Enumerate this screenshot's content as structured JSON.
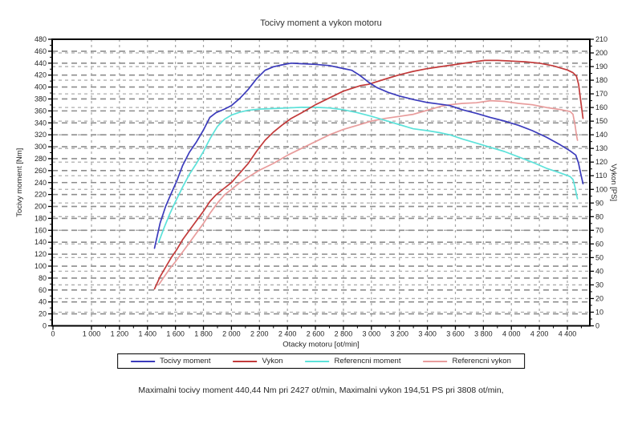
{
  "title": "Tocivy moment a vykon motoru",
  "footer_note": "Maximalni tocivy moment 440,44 Nm pri 2427 ot/min,  Maximalni vykon 194,51 PS pri 3808 ot/min,",
  "colors": {
    "background": "#ffffff",
    "axis": "#000000",
    "grid_left": "#8e8e8e",
    "grid_right": "#adadad",
    "grid_vertical": "#a5a5a5",
    "text": "#262626"
  },
  "chart_data": {
    "type": "line",
    "title": "Tocivy moment a vykon motoru",
    "xlabel": "Otacky motoru [ot/min]",
    "ylabel_left": "Tocivy moment [Nm]",
    "ylabel_right": "Vykon [PS]",
    "grid": true,
    "legend_position": "bottom",
    "ylim_left": [
      0,
      480
    ],
    "ytick_left": 20,
    "ylim_right": [
      0,
      210
    ],
    "ytick_right": 10,
    "x_axis_note": "axis starts at 0 with compressed gap, then linear 1000-4560",
    "x_ticks": [
      {
        "v": 0,
        "label": "0"
      },
      {
        "v": 1000,
        "label": "1 000"
      },
      {
        "v": 1200,
        "label": "1 200"
      },
      {
        "v": 1400,
        "label": "1 400"
      },
      {
        "v": 1600,
        "label": "1 600"
      },
      {
        "v": 1800,
        "label": "1 800"
      },
      {
        "v": 2000,
        "label": "2 000"
      },
      {
        "v": 2200,
        "label": "2 200"
      },
      {
        "v": 2400,
        "label": "2 400"
      },
      {
        "v": 2600,
        "label": "2 600"
      },
      {
        "v": 2800,
        "label": "2 800"
      },
      {
        "v": 3000,
        "label": "3 000"
      },
      {
        "v": 3200,
        "label": "3 200"
      },
      {
        "v": 3400,
        "label": "3 400"
      },
      {
        "v": 3600,
        "label": "3 600"
      },
      {
        "v": 3800,
        "label": "3 800"
      },
      {
        "v": 4000,
        "label": "4 000"
      },
      {
        "v": 4200,
        "label": "4 200"
      },
      {
        "v": 4400,
        "label": "4 400"
      }
    ],
    "annotations": {
      "max_torque": "440,44 Nm pri 2427 ot/min",
      "max_power": "194,51 PS pri 3808 ot/min"
    },
    "series": [
      {
        "name": "Tocivy moment",
        "axis": "left",
        "unit": "Nm",
        "color": "#3b3bbc",
        "points": [
          [
            1450,
            130
          ],
          [
            1490,
            172
          ],
          [
            1530,
            200
          ],
          [
            1570,
            222
          ],
          [
            1610,
            243
          ],
          [
            1650,
            268
          ],
          [
            1700,
            291
          ],
          [
            1750,
            308
          ],
          [
            1800,
            328
          ],
          [
            1845,
            349
          ],
          [
            1890,
            357
          ],
          [
            1950,
            363
          ],
          [
            2000,
            369
          ],
          [
            2060,
            381
          ],
          [
            2120,
            396
          ],
          [
            2180,
            414
          ],
          [
            2240,
            428
          ],
          [
            2300,
            434
          ],
          [
            2360,
            437
          ],
          [
            2427,
            440
          ],
          [
            2500,
            439
          ],
          [
            2600,
            438
          ],
          [
            2700,
            436
          ],
          [
            2800,
            431
          ],
          [
            2860,
            428
          ],
          [
            2920,
            419
          ],
          [
            2980,
            408
          ],
          [
            3040,
            399
          ],
          [
            3120,
            391
          ],
          [
            3200,
            385
          ],
          [
            3300,
            379
          ],
          [
            3400,
            374
          ],
          [
            3500,
            371
          ],
          [
            3560,
            369
          ],
          [
            3650,
            362
          ],
          [
            3750,
            356
          ],
          [
            3850,
            349
          ],
          [
            3950,
            343
          ],
          [
            4050,
            336
          ],
          [
            4150,
            327
          ],
          [
            4250,
            316
          ],
          [
            4350,
            303
          ],
          [
            4420,
            293
          ],
          [
            4460,
            286
          ],
          [
            4480,
            272
          ],
          [
            4495,
            255
          ],
          [
            4512,
            238
          ]
        ]
      },
      {
        "name": "Vykon",
        "axis": "right",
        "unit": "PS",
        "color": "#c23a3a",
        "points": [
          [
            1450,
            27
          ],
          [
            1490,
            36
          ],
          [
            1530,
            43
          ],
          [
            1570,
            50
          ],
          [
            1610,
            56
          ],
          [
            1650,
            63
          ],
          [
            1700,
            70
          ],
          [
            1750,
            77
          ],
          [
            1800,
            84
          ],
          [
            1845,
            91
          ],
          [
            1890,
            96
          ],
          [
            1950,
            101
          ],
          [
            2000,
            105
          ],
          [
            2060,
            112
          ],
          [
            2120,
            119
          ],
          [
            2180,
            128
          ],
          [
            2240,
            136
          ],
          [
            2300,
            142
          ],
          [
            2360,
            147
          ],
          [
            2427,
            152
          ],
          [
            2500,
            156
          ],
          [
            2600,
            162
          ],
          [
            2700,
            167
          ],
          [
            2800,
            172
          ],
          [
            2860,
            174
          ],
          [
            2920,
            176
          ],
          [
            2980,
            177
          ],
          [
            3040,
            179
          ],
          [
            3120,
            181.5
          ],
          [
            3200,
            184
          ],
          [
            3300,
            186.5
          ],
          [
            3400,
            188.5
          ],
          [
            3500,
            190
          ],
          [
            3600,
            191.5
          ],
          [
            3700,
            193
          ],
          [
            3808,
            194.5
          ],
          [
            3900,
            194.5
          ],
          [
            4000,
            194
          ],
          [
            4100,
            193.5
          ],
          [
            4200,
            192.5
          ],
          [
            4300,
            190.5
          ],
          [
            4400,
            187.5
          ],
          [
            4440,
            185.5
          ],
          [
            4465,
            183
          ],
          [
            4480,
            177
          ],
          [
            4495,
            165
          ],
          [
            4512,
            152
          ]
        ]
      },
      {
        "name": "Referencni moment",
        "axis": "left",
        "unit": "Nm",
        "color": "#5ce2da",
        "points": [
          [
            1480,
            140
          ],
          [
            1520,
            165
          ],
          [
            1560,
            188
          ],
          [
            1600,
            208
          ],
          [
            1650,
            232
          ],
          [
            1700,
            254
          ],
          [
            1750,
            272
          ],
          [
            1800,
            292
          ],
          [
            1850,
            315
          ],
          [
            1900,
            334
          ],
          [
            1950,
            346
          ],
          [
            2000,
            353
          ],
          [
            2060,
            358
          ],
          [
            2120,
            361
          ],
          [
            2200,
            363
          ],
          [
            2300,
            364
          ],
          [
            2400,
            365
          ],
          [
            2500,
            366
          ],
          [
            2600,
            366
          ],
          [
            2700,
            365
          ],
          [
            2800,
            362
          ],
          [
            2900,
            357
          ],
          [
            3000,
            351
          ],
          [
            3100,
            344
          ],
          [
            3200,
            337
          ],
          [
            3300,
            330
          ],
          [
            3400,
            327
          ],
          [
            3500,
            323
          ],
          [
            3560,
            320
          ],
          [
            3650,
            313
          ],
          [
            3750,
            306
          ],
          [
            3850,
            299
          ],
          [
            3950,
            292
          ],
          [
            4050,
            283
          ],
          [
            4150,
            274
          ],
          [
            4250,
            264
          ],
          [
            4350,
            256
          ],
          [
            4420,
            250
          ],
          [
            4440,
            245
          ],
          [
            4455,
            232
          ],
          [
            4465,
            220
          ],
          [
            4472,
            213
          ]
        ]
      },
      {
        "name": "Referencni vykon",
        "axis": "right",
        "unit": "PS",
        "color": "#e89c9c",
        "points": [
          [
            1480,
            30
          ],
          [
            1520,
            36
          ],
          [
            1560,
            42
          ],
          [
            1600,
            47
          ],
          [
            1650,
            54
          ],
          [
            1700,
            61
          ],
          [
            1750,
            68
          ],
          [
            1800,
            75
          ],
          [
            1850,
            83
          ],
          [
            1900,
            90
          ],
          [
            1950,
            96
          ],
          [
            2000,
            100
          ],
          [
            2060,
            105
          ],
          [
            2120,
            109
          ],
          [
            2200,
            114
          ],
          [
            2300,
            119
          ],
          [
            2400,
            125
          ],
          [
            2500,
            130
          ],
          [
            2600,
            135
          ],
          [
            2700,
            140
          ],
          [
            2800,
            144
          ],
          [
            2900,
            147
          ],
          [
            3000,
            150
          ],
          [
            3100,
            152
          ],
          [
            3200,
            153.5
          ],
          [
            3300,
            155
          ],
          [
            3400,
            158
          ],
          [
            3500,
            161
          ],
          [
            3560,
            162
          ],
          [
            3650,
            163
          ],
          [
            3750,
            163.5
          ],
          [
            3850,
            165
          ],
          [
            3950,
            164.5
          ],
          [
            4050,
            163
          ],
          [
            4150,
            162
          ],
          [
            4250,
            160
          ],
          [
            4350,
            158.5
          ],
          [
            4420,
            157
          ],
          [
            4440,
            155
          ],
          [
            4455,
            147
          ],
          [
            4465,
            140
          ],
          [
            4472,
            136
          ]
        ]
      }
    ]
  }
}
